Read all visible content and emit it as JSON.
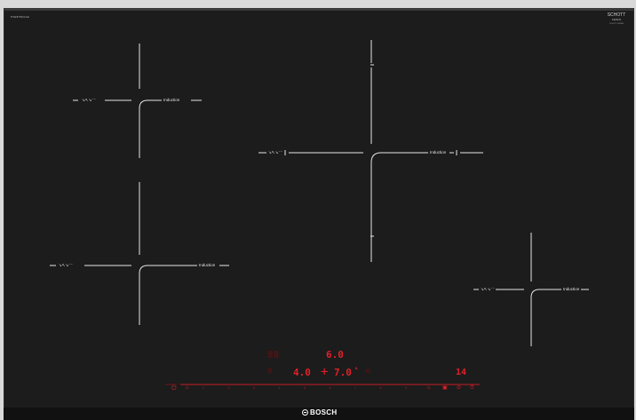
{
  "cooktop": {
    "model_code": "PXE875DC1E",
    "glass_brand": {
      "line1": "SCHOTT",
      "line2": "CERAN",
      "line3": "SCHOTT-CERAN"
    },
    "brand": "BOSCH",
    "zones": [
      {
        "id": "front-left-top",
        "label_left": "↘↖↘⁻⁻",
        "label_right": "Induction"
      },
      {
        "id": "front-left-bottom",
        "label_left": "↘↖↘⁻⁻",
        "label_right": "Induction"
      },
      {
        "id": "center",
        "label_left": "↘↖↘⁻⁻",
        "label_right": "Induction"
      },
      {
        "id": "right",
        "label_left": "↘↖↘⁻⁻",
        "label_right": "Induction"
      }
    ]
  },
  "controls": {
    "display_top_right": "6.0",
    "display_left": "4.0",
    "display_center": "7.0",
    "display_timer": "14",
    "power_icon": "power-icon",
    "slider_numbers": [
      "1",
      "2",
      "3",
      "4",
      "5",
      "6",
      "7",
      "8",
      "9"
    ],
    "accent_color": "#e0202a"
  }
}
